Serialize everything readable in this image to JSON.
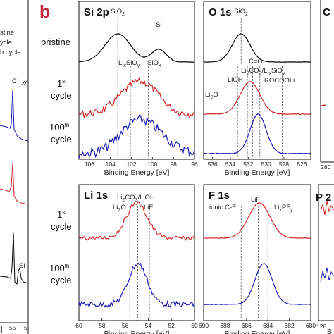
{
  "figure": {
    "panel_letter": "b",
    "left_panel": {
      "legend_lines": [
        "stine",
        "ycle",
        "h cycle"
      ],
      "peak_label_c": "C",
      "peak_label_si": "Si",
      "ticks": [
        "55",
        "5"
      ],
      "bottom_letter": "l"
    },
    "row_labels": {
      "pristine": "pristine",
      "first": [
        "1",
        "st",
        "cycle"
      ],
      "hundredth": [
        "100",
        "th",
        "cycle"
      ]
    },
    "colors": {
      "pristine": "#000000",
      "first": "#d42525",
      "hundredth": "#1a1ab8",
      "letter": "#c0263a"
    },
    "axis_label": "Binding Energy [eV]"
  },
  "chart_data": [
    {
      "type": "line",
      "title": "Si 2p",
      "xlabel": "Binding Energy [eV]",
      "xlim": [
        107,
        96
      ],
      "xticks": [
        96,
        98,
        100,
        102,
        104,
        106
      ],
      "reference_lines": [
        99.4,
        103.3,
        100.4,
        102.1
      ],
      "annotations": [
        "Si",
        "SiO2",
        "LixSiOy",
        "SiOx"
      ],
      "series": [
        {
          "name": "pristine",
          "peaks": [
            [
              99.4,
              0.45,
              0.7
            ],
            [
              103.3,
              1.0,
              1.2
            ]
          ]
        },
        {
          "name": "1st cycle",
          "peaks": [
            [
              100.4,
              0.8,
              1.4
            ],
            [
              102.1,
              0.8,
              1.5
            ]
          ]
        },
        {
          "name": "100th cycle",
          "peaks": [
            [
              100.4,
              0.8,
              1.8
            ],
            [
              102.1,
              0.5,
              1.5
            ]
          ]
        }
      ]
    },
    {
      "type": "line",
      "title": "O 1s",
      "xlabel": "Binding Energy [eV]",
      "xlim": [
        537,
        525
      ],
      "xticks": [
        526,
        528,
        530,
        532,
        534,
        536
      ],
      "reference_lines": [
        528.2,
        530.7,
        531.5,
        532.1,
        533.2
      ],
      "annotations": [
        "SiO2",
        "C=O",
        "Li2CO3/LixSiOy",
        "LiOH",
        "ROCOOLi",
        "Li2O"
      ],
      "series": [
        {
          "name": "pristine",
          "peaks": [
            [
              532.8,
              1.0,
              1.0
            ]
          ]
        },
        {
          "name": "1st cycle",
          "peaks": [
            [
              531.8,
              1.0,
              1.1
            ]
          ]
        },
        {
          "name": "100th cycle",
          "peaks": [
            [
              530.9,
              1.0,
              0.9
            ]
          ]
        }
      ]
    },
    {
      "type": "line",
      "title": "Li 1s",
      "xlabel": "Binding Energy [eV]",
      "xlim": [
        60,
        50
      ],
      "xticks": [
        50,
        52,
        54,
        56,
        58,
        60
      ],
      "reference_lines": [
        53.9,
        54.9,
        55.6
      ],
      "annotations": [
        "Li2CO3/LiOH",
        "LiF",
        "Li2O"
      ],
      "series": [
        {
          "name": "1st cycle",
          "peaks": [
            [
              55.0,
              1.0,
              0.9
            ]
          ]
        },
        {
          "name": "100th cycle",
          "peaks": [
            [
              54.9,
              1.0,
              0.8
            ]
          ]
        }
      ]
    },
    {
      "type": "line",
      "title": "F 1s",
      "xlabel": "Binding Energy [eV]",
      "xlim": [
        690,
        680
      ],
      "xticks": [
        680,
        682,
        684,
        686,
        688,
        690
      ],
      "reference_lines": [
        684.0,
        684.9,
        686.5
      ],
      "annotations": [
        "LiF",
        "ionic C-F",
        "LixPFy"
      ],
      "series": [
        {
          "name": "1st cycle",
          "peaks": [
            [
              684.8,
              1.0,
              1.0
            ]
          ]
        },
        {
          "name": "100th cycle",
          "peaks": [
            [
              684.4,
              1.0,
              0.8
            ]
          ]
        }
      ]
    }
  ],
  "cut_panels": {
    "c_title": "C 1",
    "c_tick": "280",
    "p_title": "P 2",
    "p_tick": "128",
    "p_axis_fragment": "B"
  }
}
